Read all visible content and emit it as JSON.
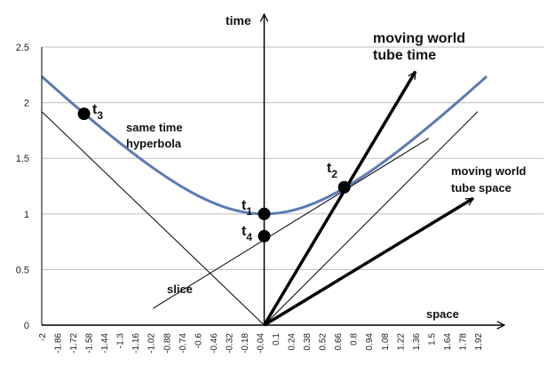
{
  "chart_data": {
    "type": "line",
    "title": "",
    "x_tick_labels": [
      "-2",
      "-1.86",
      "-1.72",
      "-1.58",
      "-1.44",
      "-1.3",
      "-1.16",
      "-1.02",
      "-0.88",
      "-0.74",
      "-0.6",
      "-0.46",
      "-0.32",
      "-0.18",
      "-0.04",
      "0.1",
      "0.24",
      "0.38",
      "0.52",
      "0.66",
      "0.8",
      "0.94",
      "1.08",
      "1.22",
      "1.36",
      "1.5",
      "1.64",
      "1.78",
      "1.92"
    ],
    "y_tick_labels": [
      "0",
      "0.5",
      "1",
      "1.5",
      "2",
      "2.5"
    ],
    "xlim": [
      -2,
      2.0
    ],
    "ylim": [
      0,
      2.5
    ],
    "grid": "horizontal",
    "axis_labels": {
      "time": "time",
      "space": "space"
    },
    "series": [
      {
        "name": "same time hyperbola",
        "color": "#5a7bb3",
        "formula": "t = sqrt(1 + x^2)",
        "x_range": [
          -2.0,
          2.0
        ]
      },
      {
        "name": "light cone left",
        "color": "#000000",
        "points": [
          [
            -2.0,
            1.92
          ],
          [
            0.0,
            0.0
          ]
        ]
      },
      {
        "name": "light cone right",
        "color": "#000000",
        "points": [
          [
            0.0,
            0.0
          ],
          [
            1.92,
            1.92
          ]
        ]
      },
      {
        "name": "slice",
        "color": "#000000",
        "points": [
          [
            -1.0,
            0.15
          ],
          [
            1.48,
            1.68
          ]
        ]
      },
      {
        "name": "moving world tube time",
        "color": "#000000",
        "points": [
          [
            0.0,
            0.0
          ],
          [
            1.36,
            2.28
          ]
        ]
      },
      {
        "name": "moving world tube space",
        "color": "#000000",
        "points": [
          [
            0.0,
            0.0
          ],
          [
            1.88,
            1.14
          ]
        ]
      }
    ],
    "points": [
      {
        "label": "t",
        "sub": "1",
        "x": 0.0,
        "y": 1.0
      },
      {
        "label": "t",
        "sub": "2",
        "x": 0.72,
        "y": 1.24
      },
      {
        "label": "t",
        "sub": "3",
        "x": -1.62,
        "y": 1.9
      },
      {
        "label": "t",
        "sub": "4",
        "x": 0.0,
        "y": 0.8
      }
    ],
    "annotations": {
      "hyperbola_line1": "same time",
      "hyperbola_line2": "hyperbola",
      "slice": "slice",
      "tube_time_line1": "moving world",
      "tube_time_line2": "tube time",
      "tube_space_line1": "moving world",
      "tube_space_line2": "tube space"
    },
    "colors": {
      "hyperbola": "#5a7bb3",
      "lines": "#000000",
      "grid": "#bdbdbd"
    }
  }
}
